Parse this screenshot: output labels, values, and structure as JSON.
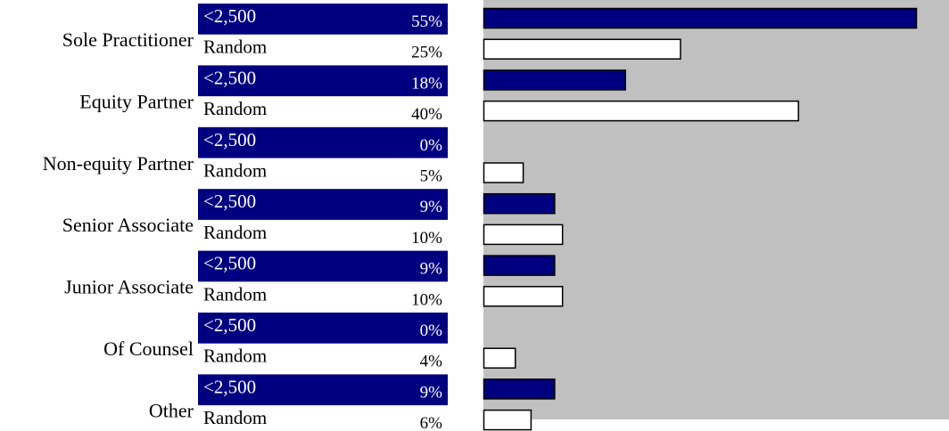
{
  "chart_data": {
    "type": "bar",
    "orientation": "horizontal",
    "title": "",
    "xlabel": "",
    "ylabel": "",
    "xlim": [
      0,
      55
    ],
    "grid": false,
    "legend": "none",
    "categories": [
      "Sole Practitioner",
      "Equity Partner",
      "Non-equity Partner",
      "Senior Associate",
      "Junior Associate",
      "Of Counsel",
      "Other"
    ],
    "series": [
      {
        "name": "<2,500",
        "color": "#000080",
        "values": [
          55,
          18,
          0,
          9,
          9,
          0,
          9
        ],
        "labels": [
          "55%",
          "18%",
          "0%",
          "9%",
          "9%",
          "0%",
          "9%"
        ]
      },
      {
        "name": "Random",
        "color": "#ffffff",
        "values": [
          25,
          40,
          5,
          10,
          10,
          4,
          6
        ],
        "labels": [
          "25%",
          "40%",
          "5%",
          "10%",
          "10%",
          "4%",
          "6%"
        ]
      }
    ],
    "plot_background": "#c0c0c0",
    "bar_outline": "#000000"
  }
}
